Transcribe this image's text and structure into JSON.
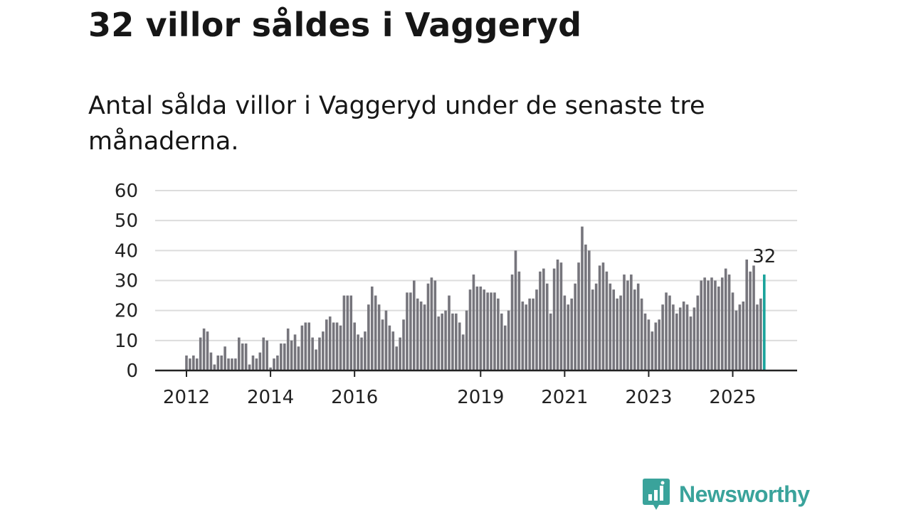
{
  "title": "32 villor såldes i Vaggeryd",
  "subtitle": "Antal sålda villor i Vaggeryd under de senaste tre månaderna.",
  "brand": {
    "name": "Newsworthy",
    "color": "#3aa39b"
  },
  "chart_data": {
    "type": "bar",
    "title": "32 villor såldes i Vaggeryd",
    "ylabel": "",
    "xlabel": "",
    "ylim": [
      0,
      60
    ],
    "yticks": [
      0,
      10,
      20,
      30,
      40,
      50,
      60
    ],
    "xticks": [
      {
        "label": "2012",
        "index": 0
      },
      {
        "label": "2014",
        "index": 24
      },
      {
        "label": "2016",
        "index": 48
      },
      {
        "label": "2019",
        "index": 84
      },
      {
        "label": "2021",
        "index": 108
      },
      {
        "label": "2023",
        "index": 132
      },
      {
        "label": "2025",
        "index": 156
      }
    ],
    "x_start": "2012-01",
    "bar_color": "#76757c",
    "highlight_color": "#1aa39b",
    "highlight_label": "32",
    "values": [
      5,
      4,
      5,
      4,
      11,
      14,
      13,
      6,
      2,
      5,
      5,
      8,
      4,
      4,
      4,
      11,
      9,
      9,
      2,
      5,
      4,
      6,
      11,
      10,
      1,
      4,
      5,
      9,
      9,
      14,
      10,
      12,
      8,
      15,
      16,
      16,
      11,
      7,
      11,
      13,
      17,
      18,
      16,
      16,
      15,
      25,
      25,
      25,
      16,
      12,
      11,
      13,
      22,
      28,
      25,
      22,
      17,
      20,
      15,
      13,
      8,
      11,
      17,
      26,
      26,
      30,
      24,
      23,
      22,
      29,
      31,
      30,
      18,
      19,
      20,
      25,
      19,
      19,
      16,
      12,
      20,
      27,
      32,
      28,
      28,
      27,
      26,
      26,
      26,
      24,
      19,
      15,
      20,
      32,
      40,
      33,
      23,
      22,
      24,
      24,
      27,
      33,
      34,
      29,
      19,
      34,
      37,
      36,
      25,
      22,
      24,
      29,
      36,
      48,
      42,
      40,
      27,
      29,
      35,
      36,
      33,
      29,
      27,
      24,
      25,
      32,
      30,
      32,
      27,
      29,
      24,
      19,
      17,
      13,
      16,
      17,
      22,
      26,
      25,
      22,
      19,
      21,
      23,
      22,
      18,
      21,
      25,
      30,
      31,
      30,
      31,
      30,
      28,
      31,
      34,
      32,
      26,
      20,
      22,
      23,
      37,
      33,
      35,
      22,
      24,
      32
    ]
  }
}
